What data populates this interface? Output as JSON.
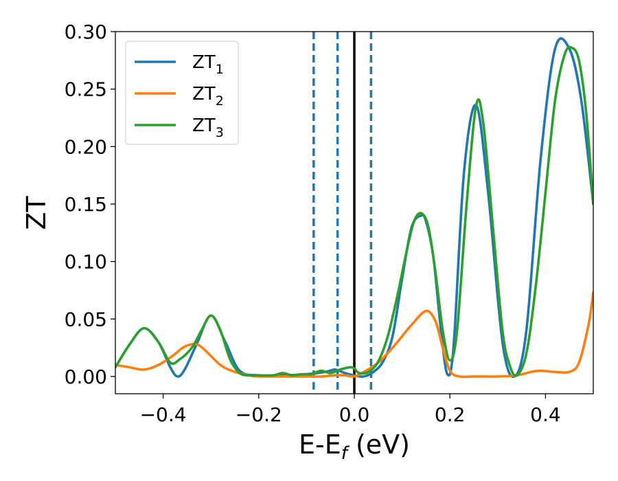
{
  "chart_data": {
    "type": "line",
    "title": "",
    "xlabel": "E-E",
    "xlabel_sub": "f",
    "xlabel_unit": " (eV)",
    "ylabel": "ZT",
    "xlim": [
      -0.5,
      0.5
    ],
    "ylim": [
      -0.015,
      0.3
    ],
    "xticks": [
      -0.4,
      -0.2,
      0.0,
      0.2,
      0.4
    ],
    "xtick_labels": [
      "−0.4",
      "−0.2",
      "0.0",
      "0.2",
      "0.4"
    ],
    "yticks": [
      0.0,
      0.05,
      0.1,
      0.15,
      0.2,
      0.25,
      0.3
    ],
    "ytick_labels": [
      "0.00",
      "0.05",
      "0.10",
      "0.15",
      "0.20",
      "0.25",
      "0.30"
    ],
    "grid": false,
    "legend_position": "top-left",
    "vertical_lines": [
      {
        "x": -0.085,
        "style": "dashed",
        "color": "#1f77b4"
      },
      {
        "x": -0.035,
        "style": "dashed",
        "color": "#1f77b4"
      },
      {
        "x": 0.0,
        "style": "solid",
        "color": "#000000"
      },
      {
        "x": 0.035,
        "style": "dashed",
        "color": "#1f77b4"
      }
    ],
    "series": [
      {
        "name": "ZT",
        "name_sub": "1",
        "color": "#1f77b4",
        "x": [
          -0.5,
          -0.47,
          -0.44,
          -0.41,
          -0.385,
          -0.37,
          -0.355,
          -0.33,
          -0.3,
          -0.27,
          -0.24,
          -0.2,
          -0.15,
          -0.1,
          -0.06,
          -0.04,
          -0.02,
          0.0,
          0.02,
          0.04,
          0.06,
          0.08,
          0.1,
          0.12,
          0.14,
          0.15,
          0.165,
          0.18,
          0.19,
          0.197,
          0.203,
          0.21,
          0.23,
          0.255,
          0.28,
          0.31,
          0.335,
          0.36,
          0.39,
          0.42,
          0.45,
          0.475,
          0.5
        ],
        "y": [
          0.008,
          0.028,
          0.042,
          0.03,
          0.008,
          0.0,
          0.006,
          0.028,
          0.053,
          0.03,
          0.005,
          0.001,
          0.001,
          0.002,
          0.004,
          0.006,
          0.003,
          0.001,
          0.0,
          0.004,
          0.013,
          0.035,
          0.085,
          0.13,
          0.14,
          0.135,
          0.105,
          0.045,
          0.01,
          0.001,
          0.008,
          0.04,
          0.18,
          0.236,
          0.16,
          0.03,
          0.0,
          0.04,
          0.19,
          0.285,
          0.285,
          0.24,
          0.15
        ]
      },
      {
        "name": "ZT",
        "name_sub": "2",
        "color": "#ff7f0e",
        "x": [
          -0.5,
          -0.47,
          -0.44,
          -0.41,
          -0.38,
          -0.355,
          -0.33,
          -0.31,
          -0.28,
          -0.25,
          -0.22,
          -0.2,
          -0.15,
          -0.1,
          -0.07,
          -0.04,
          -0.02,
          0.0,
          0.02,
          0.05,
          0.08,
          0.1,
          0.12,
          0.15,
          0.17,
          0.185,
          0.2,
          0.22,
          0.25,
          0.3,
          0.34,
          0.37,
          0.39,
          0.42,
          0.45,
          0.47,
          0.49,
          0.5
        ],
        "y": [
          0.01,
          0.008,
          0.006,
          0.01,
          0.018,
          0.026,
          0.028,
          0.022,
          0.01,
          0.004,
          0.001,
          0.0,
          0.0,
          0.0,
          0.0,
          0.001,
          0.001,
          0.0,
          0.004,
          0.012,
          0.025,
          0.035,
          0.045,
          0.057,
          0.048,
          0.025,
          0.005,
          0.0,
          0.0,
          0.0,
          0.001,
          0.004,
          0.005,
          0.004,
          0.004,
          0.012,
          0.045,
          0.073
        ]
      },
      {
        "name": "ZT",
        "name_sub": "3",
        "color": "#2ca02c",
        "x": [
          -0.5,
          -0.47,
          -0.44,
          -0.41,
          -0.385,
          -0.365,
          -0.34,
          -0.32,
          -0.3,
          -0.28,
          -0.26,
          -0.24,
          -0.22,
          -0.2,
          -0.17,
          -0.15,
          -0.13,
          -0.11,
          -0.09,
          -0.07,
          -0.05,
          -0.03,
          -0.01,
          0.0,
          0.01,
          0.03,
          0.05,
          0.07,
          0.09,
          0.11,
          0.125,
          0.14,
          0.155,
          0.17,
          0.185,
          0.2,
          0.215,
          0.235,
          0.255,
          0.27,
          0.29,
          0.31,
          0.325,
          0.34,
          0.36,
          0.38,
          0.4,
          0.42,
          0.44,
          0.455,
          0.47,
          0.485,
          0.5
        ],
        "y": [
          0.008,
          0.028,
          0.042,
          0.03,
          0.012,
          0.015,
          0.025,
          0.04,
          0.053,
          0.04,
          0.015,
          0.003,
          0.001,
          0.001,
          0.001,
          0.003,
          0.001,
          0.002,
          0.002,
          0.005,
          0.003,
          0.006,
          0.008,
          0.007,
          0.003,
          0.004,
          0.013,
          0.035,
          0.07,
          0.11,
          0.135,
          0.142,
          0.13,
          0.09,
          0.04,
          0.014,
          0.04,
          0.15,
          0.236,
          0.22,
          0.13,
          0.04,
          0.01,
          0.001,
          0.02,
          0.08,
          0.16,
          0.24,
          0.28,
          0.286,
          0.275,
          0.23,
          0.15
        ]
      }
    ]
  }
}
